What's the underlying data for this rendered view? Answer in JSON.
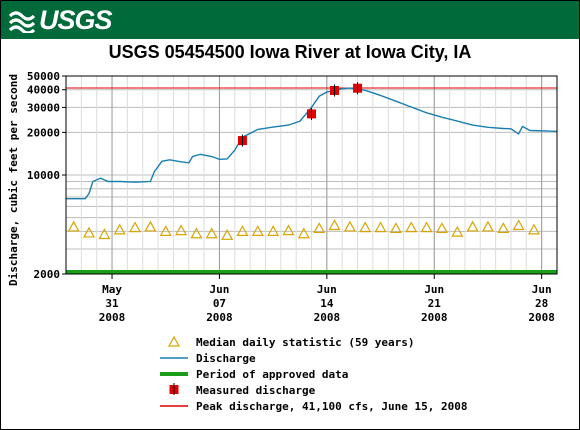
{
  "banner": {
    "logo_text": "USGS",
    "color": "#006a3a"
  },
  "chart_data": {
    "type": "line",
    "title": "USGS 05454500 Iowa River at Iowa City, IA",
    "ylabel": "Discharge, cubic feet per second",
    "yscale": "log",
    "ylim": [
      2000,
      50000
    ],
    "xlim": [
      "2008-05-28",
      "2008-06-29"
    ],
    "y_ticks": [
      {
        "value": 2000,
        "label": "2000"
      },
      {
        "value": 10000,
        "label": "10000"
      },
      {
        "value": 20000,
        "label": "20000"
      },
      {
        "value": 30000,
        "label": "30000"
      },
      {
        "value": 40000,
        "label": "40000"
      },
      {
        "value": 50000,
        "label": "50000"
      }
    ],
    "x_ticks": [
      {
        "date": "2008-05-31",
        "month": "May",
        "day": "31",
        "year": "2008"
      },
      {
        "date": "2008-06-07",
        "month": "Jun",
        "day": "07",
        "year": "2008"
      },
      {
        "date": "2008-06-14",
        "month": "Jun",
        "day": "14",
        "year": "2008"
      },
      {
        "date": "2008-06-21",
        "month": "Jun",
        "day": "21",
        "year": "2008"
      },
      {
        "date": "2008-06-28",
        "month": "Jun",
        "day": "28",
        "year": "2008"
      }
    ],
    "series": [
      {
        "name": "Discharge",
        "color": "#1a7fb0",
        "points": [
          [
            "2008-05-28 00:00",
            6800
          ],
          [
            "2008-05-29 06:00",
            6800
          ],
          [
            "2008-05-29 12:00",
            7400
          ],
          [
            "2008-05-29 18:00",
            9000
          ],
          [
            "2008-05-30 06:00",
            9500
          ],
          [
            "2008-05-30 18:00",
            9000
          ],
          [
            "2008-05-31 12:00",
            9000
          ],
          [
            "2008-06-01 12:00",
            8900
          ],
          [
            "2008-06-02 12:00",
            9000
          ],
          [
            "2008-06-02 18:00",
            10500
          ],
          [
            "2008-06-03 06:00",
            12500
          ],
          [
            "2008-06-03 18:00",
            12800
          ],
          [
            "2008-06-04 12:00",
            12400
          ],
          [
            "2008-06-05 00:00",
            12200
          ],
          [
            "2008-06-05 06:00",
            13500
          ],
          [
            "2008-06-05 18:00",
            14000
          ],
          [
            "2008-06-06 12:00",
            13500
          ],
          [
            "2008-06-07 00:00",
            12900
          ],
          [
            "2008-06-07 12:00",
            13000
          ],
          [
            "2008-06-08 00:00",
            15000
          ],
          [
            "2008-06-08 12:00",
            18500
          ],
          [
            "2008-06-09 12:00",
            21000
          ],
          [
            "2008-06-10 12:00",
            21800
          ],
          [
            "2008-06-11 12:00",
            22500
          ],
          [
            "2008-06-12 06:00",
            24000
          ],
          [
            "2008-06-13 00:00",
            30000
          ],
          [
            "2008-06-13 12:00",
            36000
          ],
          [
            "2008-06-14 00:00",
            38500
          ],
          [
            "2008-06-14 12:00",
            39500
          ],
          [
            "2008-06-15 00:00",
            40700
          ],
          [
            "2008-06-15 12:00",
            41100
          ],
          [
            "2008-06-16 12:00",
            39600
          ],
          [
            "2008-06-17 12:00",
            36500
          ],
          [
            "2008-06-18 12:00",
            33200
          ],
          [
            "2008-06-19 12:00",
            30200
          ],
          [
            "2008-06-20 12:00",
            27500
          ],
          [
            "2008-06-21 12:00",
            25600
          ],
          [
            "2008-06-22 12:00",
            24000
          ],
          [
            "2008-06-23 12:00",
            22500
          ],
          [
            "2008-06-24 12:00",
            21700
          ],
          [
            "2008-06-25 12:00",
            21300
          ],
          [
            "2008-06-26 00:00",
            21200
          ],
          [
            "2008-06-26 12:00",
            19500
          ],
          [
            "2008-06-26 18:00",
            22000
          ],
          [
            "2008-06-27 06:00",
            20600
          ],
          [
            "2008-06-28 12:00",
            20400
          ],
          [
            "2008-06-29 00:00",
            20300
          ]
        ]
      },
      {
        "name": "Median daily statistic (59 years)",
        "color": "#d9a400",
        "marker": "triangle",
        "points": [
          [
            "2008-05-28",
            4300
          ],
          [
            "2008-05-29",
            3900
          ],
          [
            "2008-05-30",
            3800
          ],
          [
            "2008-05-31",
            4100
          ],
          [
            "2008-06-01",
            4250
          ],
          [
            "2008-06-02",
            4300
          ],
          [
            "2008-06-03",
            4000
          ],
          [
            "2008-06-04",
            4050
          ],
          [
            "2008-06-05",
            3850
          ],
          [
            "2008-06-06",
            3850
          ],
          [
            "2008-06-07",
            3750
          ],
          [
            "2008-06-08",
            4000
          ],
          [
            "2008-06-09",
            4000
          ],
          [
            "2008-06-10",
            4000
          ],
          [
            "2008-06-11",
            4050
          ],
          [
            "2008-06-12",
            3850
          ],
          [
            "2008-06-13",
            4200
          ],
          [
            "2008-06-14",
            4400
          ],
          [
            "2008-06-15",
            4300
          ],
          [
            "2008-06-16",
            4250
          ],
          [
            "2008-06-17",
            4250
          ],
          [
            "2008-06-18",
            4200
          ],
          [
            "2008-06-19",
            4250
          ],
          [
            "2008-06-20",
            4250
          ],
          [
            "2008-06-21",
            4200
          ],
          [
            "2008-06-22",
            3950
          ],
          [
            "2008-06-23",
            4300
          ],
          [
            "2008-06-24",
            4300
          ],
          [
            "2008-06-25",
            4200
          ],
          [
            "2008-06-26",
            4400
          ],
          [
            "2008-06-27",
            4100
          ]
        ]
      },
      {
        "name": "Measured discharge",
        "color": "#e00000",
        "marker": "square",
        "points": [
          [
            "2008-06-08 12:00",
            17500
          ],
          [
            "2008-06-13 00:00",
            27000
          ],
          [
            "2008-06-14 12:00",
            39500
          ],
          [
            "2008-06-16 00:00",
            41000
          ]
        ]
      },
      {
        "name": "Period of approved data",
        "color": "#1a9e1a",
        "band": [
          "2008-05-28",
          "2008-06-29"
        ]
      },
      {
        "name": "Peak discharge, 41,100 cfs, June 15, 2008",
        "color": "#e00000",
        "hline": 41100
      }
    ],
    "legend_order": [
      "Median daily statistic (59 years)",
      "Discharge",
      "Period of approved data",
      "Measured discharge",
      "Peak discharge, 41,100 cfs, June 15, 2008"
    ]
  }
}
